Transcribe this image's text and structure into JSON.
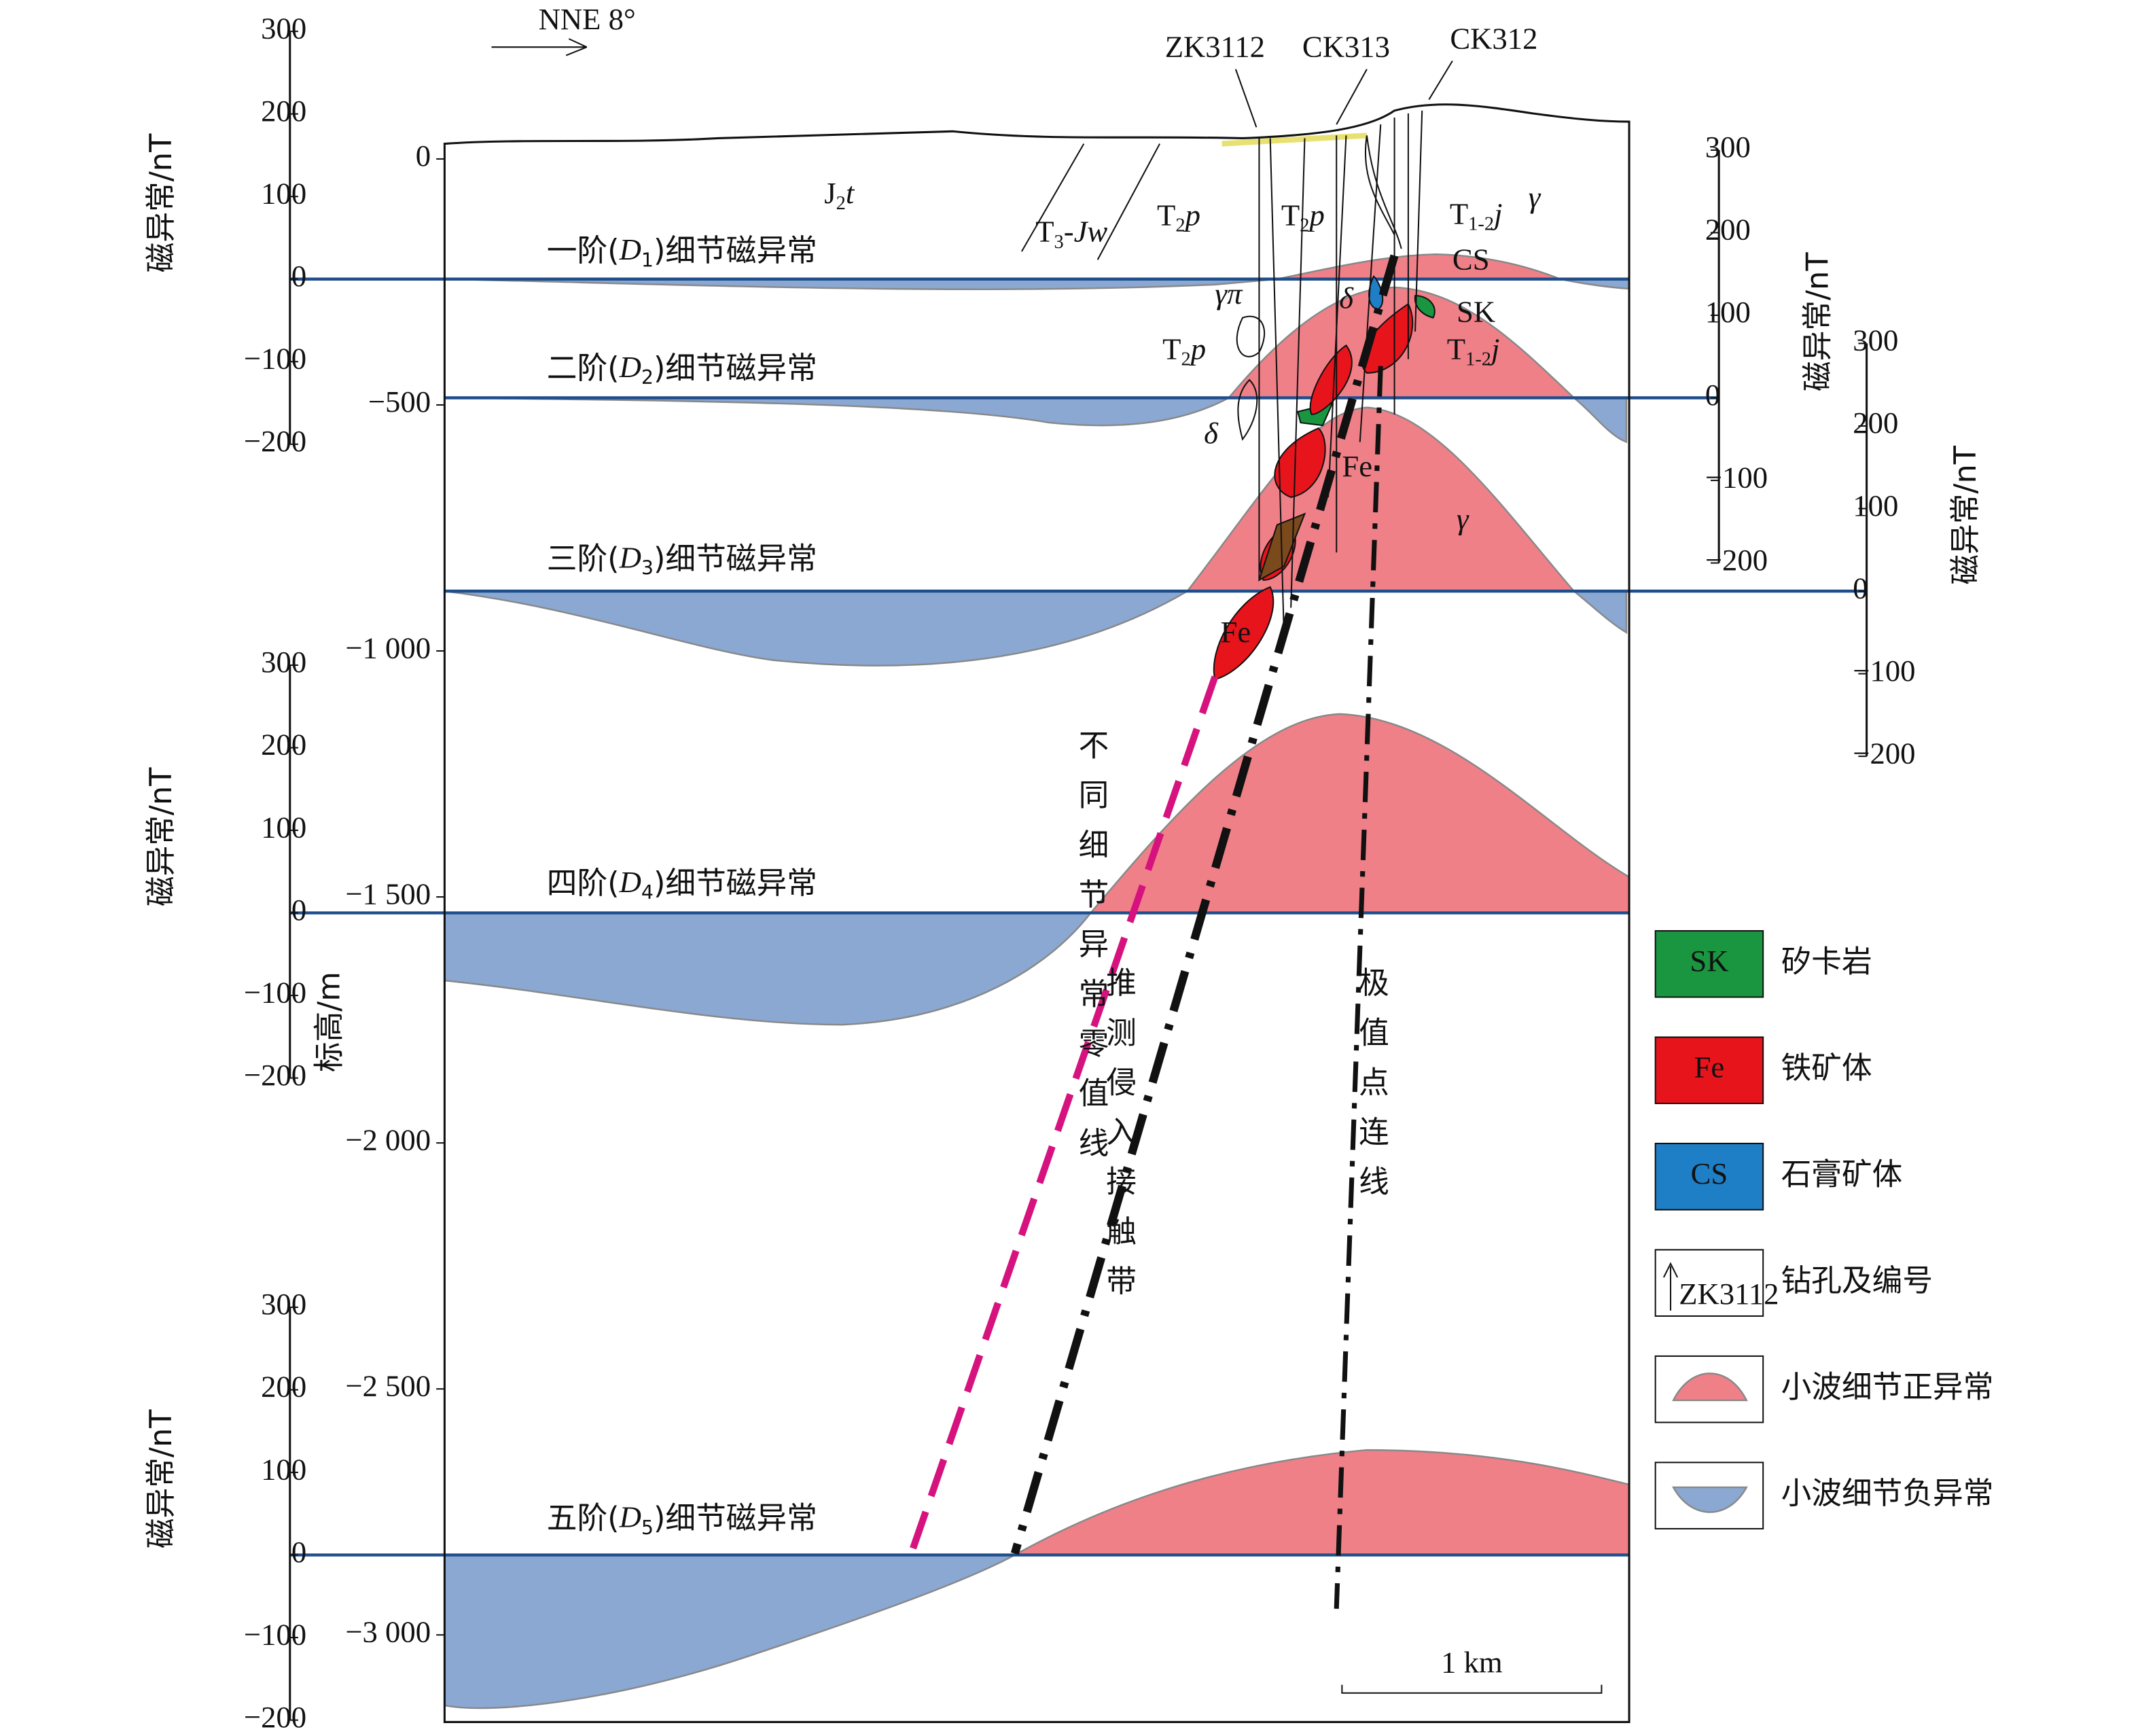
{
  "direction": "NNE 8°",
  "elevation_axis": {
    "label": "标高/m",
    "ticks": [
      0,
      {
        "value": -500,
        "label": "−500"
      },
      {
        "value": -1000,
        "label": "−1 000"
      },
      {
        "value": -1500,
        "label": "−1 500"
      },
      {
        "value": -2000,
        "label": "−2 000"
      },
      {
        "value": -2500,
        "label": "−2 500"
      },
      {
        "value": -3000,
        "label": "−3 000"
      }
    ]
  },
  "magnetic_axes": [
    {
      "label": "磁异常/nT",
      "ylim": [
        -200,
        300
      ],
      "ticks": [
        300,
        200,
        100,
        0,
        {
          "value": -100,
          "label": "−100"
        },
        {
          "value": -200,
          "label": "−200"
        }
      ]
    },
    {
      "label": "磁异常/nT",
      "ylim": [
        -200,
        300
      ],
      "ticks": [
        300,
        200,
        100,
        0,
        {
          "value": -100,
          "label": "−100"
        },
        {
          "value": -200,
          "label": "−200"
        }
      ]
    },
    {
      "label": "磁异常/nT",
      "ylim": [
        -200,
        300
      ],
      "ticks": [
        300,
        200,
        100,
        0,
        {
          "value": -100,
          "label": "−100"
        },
        {
          "value": -200,
          "label": "−200"
        }
      ]
    },
    {
      "label": "磁异常/nT",
      "ylim": [
        -200,
        300
      ],
      "ticks": [
        300,
        200,
        100,
        0,
        {
          "value": -100,
          "label": "−100"
        },
        {
          "value": -200,
          "label": "−200"
        }
      ]
    },
    {
      "label": "磁异常/nT",
      "ylim": [
        -200,
        300
      ],
      "ticks": [
        300,
        200,
        100,
        0,
        {
          "value": -100,
          "label": "−100"
        },
        {
          "value": -200,
          "label": "−200"
        }
      ]
    }
  ],
  "levels": [
    {
      "prefix": "一阶(",
      "symbol": "D",
      "sub": "1",
      "suffix": ")细节磁异常"
    },
    {
      "prefix": "二阶(",
      "symbol": "D",
      "sub": "2",
      "suffix": ")细节磁异常"
    },
    {
      "prefix": "三阶(",
      "symbol": "D",
      "sub": "3",
      "suffix": ")细节磁异常"
    },
    {
      "prefix": "四阶(",
      "symbol": "D",
      "sub": "4",
      "suffix": ")细节磁异常"
    },
    {
      "prefix": "五阶(",
      "symbol": "D",
      "sub": "5",
      "suffix": ")细节磁异常"
    }
  ],
  "drill_holes": [
    "ZK3112",
    "CK313",
    "CK312"
  ],
  "geology_labels": [
    {
      "main": "J",
      "sub": "2",
      "tail": "t"
    },
    {
      "main": "T",
      "sub": "3",
      "tail": "-Jw"
    },
    {
      "main": "T",
      "sub": "2",
      "tail": "p"
    },
    {
      "main": "T",
      "sub": "2",
      "tail": "p"
    },
    {
      "main": "T",
      "sub": "1-2",
      "tail": "j"
    },
    {
      "main": "γ"
    },
    {
      "main": "CS"
    },
    {
      "main": "SK"
    },
    {
      "main": "T",
      "sub": "1-2",
      "tail": "j"
    },
    {
      "main": "γπ"
    },
    {
      "main": "T",
      "sub": "2",
      "tail": "p"
    },
    {
      "main": "δ"
    },
    {
      "main": "δ"
    },
    {
      "main": "Fe"
    },
    {
      "main": "γ"
    },
    {
      "main": "Fe"
    }
  ],
  "lines": {
    "zero_line": "不同细节异常零值线",
    "contact": "推测侵入接触带",
    "extreme": "极值点连线"
  },
  "scale": "1 km",
  "legend": [
    {
      "symbol": "SK",
      "label": "矽卡岩"
    },
    {
      "symbol": "Fe",
      "label": "铁矿体"
    },
    {
      "symbol": "CS",
      "label": "石膏矿体"
    },
    {
      "symbol": "ZK3112",
      "label": "钻孔及编号"
    },
    {
      "label": "小波细节正异常"
    },
    {
      "label": "小波细节负异常"
    }
  ]
}
